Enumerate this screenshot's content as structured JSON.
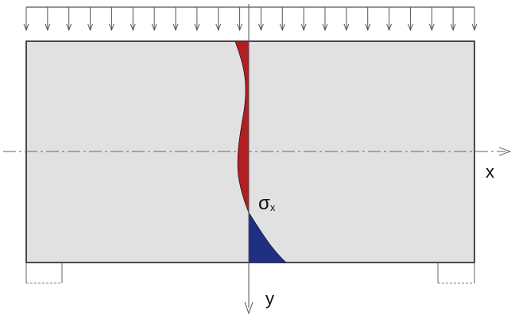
{
  "labels": {
    "stress": "σ",
    "stress_sub": "x",
    "x_axis": "x",
    "y_axis": "y"
  },
  "colors": {
    "beam_fill": "#e1e1e2",
    "outline": "#222222",
    "compression": "#b11f24",
    "tension": "#1f2f82",
    "axis_line": "#666666",
    "load_arrows": "#555555"
  },
  "load": {
    "type": "uniform-distributed",
    "arrow_count": 22
  },
  "supports": [
    "left-support",
    "right-support"
  ]
}
